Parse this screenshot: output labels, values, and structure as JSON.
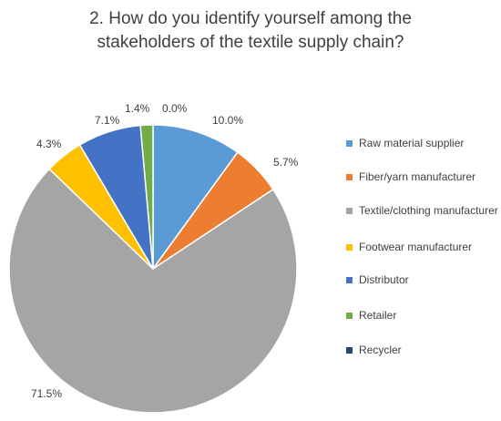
{
  "chart_data": {
    "type": "pie",
    "title_lines": [
      "2. How do you identify yourself among the",
      "stakeholders of the textile supply chain?"
    ],
    "legend_position": "right",
    "slices": [
      {
        "name": "Raw material supplier",
        "value": 10.0,
        "label": "10.0%",
        "color": "#5b9bd5"
      },
      {
        "name": "Fiber/yarn manufacturer",
        "value": 5.7,
        "label": "5.7%",
        "color": "#ed7d31"
      },
      {
        "name": "Textile/clothing manufacturer",
        "value": 71.5,
        "label": "71.5%",
        "color": "#a5a5a5"
      },
      {
        "name": "Footwear manufacturer",
        "value": 4.3,
        "label": "4.3%",
        "color": "#ffc000"
      },
      {
        "name": "Distributor",
        "value": 7.1,
        "label": "7.1%",
        "color": "#4472c4"
      },
      {
        "name": "Retailer",
        "value": 1.4,
        "label": "1.4%",
        "color": "#70ad47"
      },
      {
        "name": "Recycler",
        "value": 0.0,
        "label": "0.0%",
        "color": "#264478"
      }
    ]
  }
}
